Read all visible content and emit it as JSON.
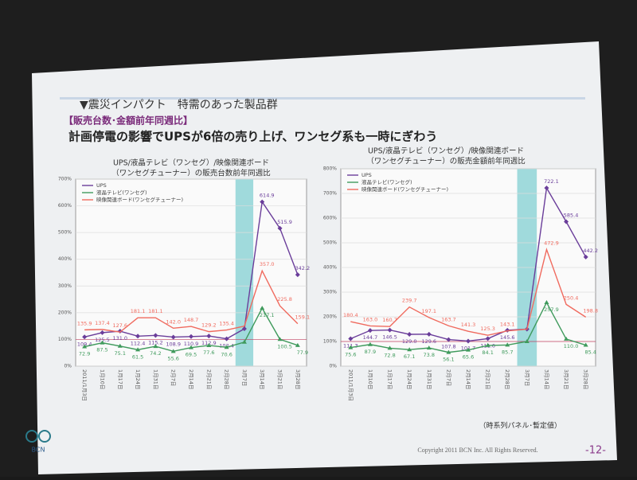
{
  "slide": {
    "title": "▼震災インパクト　特需のあった製品群",
    "subtitle": "【販売台数･金額前年同週比】",
    "headline": "計画停電の影響でUPSが6倍の売り上げ、ワンセグ系も一時にぎわう",
    "note": "（時系列パネル･暫定値）",
    "logo": "BCN",
    "copyright": "Copyright 2011  BCN Inc.  All Rights Reserved.",
    "page": "-12-"
  },
  "chart_data": [
    {
      "type": "line",
      "title": [
        "UPS/液晶テレビ（ワンセグ）/映像関連ボード",
        "（ワンセグチューナー）の販売台数前年同週比"
      ],
      "categories": [
        "2011/1月3日",
        "1月10日",
        "1月17日",
        "1月24日",
        "1月31日",
        "2月7日",
        "2月14日",
        "2月21日",
        "2月28日",
        "3月7日",
        "3月14日",
        "3月21日",
        "3月28日"
      ],
      "highlight": {
        "category": "3月7日",
        "color": "#8fd3d6"
      },
      "ylim": [
        0,
        700
      ],
      "yticks": [
        {
          "value": 0,
          "label": "0%"
        },
        {
          "value": 100,
          "label": "100%"
        },
        {
          "value": 200,
          "label": "200%"
        },
        {
          "value": 300,
          "label": "300%"
        },
        {
          "value": 400,
          "label": "400%"
        },
        {
          "value": 500,
          "label": "500%"
        },
        {
          "value": 600,
          "label": "600%"
        },
        {
          "value": 700,
          "label": "700%"
        }
      ],
      "grid": true,
      "legend": "upper-left",
      "series": [
        {
          "name": "UPS",
          "color": "#6a3d9a",
          "marker": "diamond",
          "values": [
            109.4,
            125.5,
            131.0,
            112.4,
            115.2,
            108.9,
            110.9,
            112.9,
            102.4,
            140,
            614.9,
            515.9,
            342.2
          ],
          "value_labels": [
            "109.4",
            "125.5",
            "131.0",
            "112.4",
            "115.2",
            "108.9",
            "110.9",
            "112.9",
            "102.4",
            null,
            "614.9",
            "515.9",
            "342.2"
          ]
        },
        {
          "name": "液晶テレビ(ワンセグ)",
          "color": "#3f9a5c",
          "marker": "triangle",
          "values": [
            72.9,
            87.5,
            75.1,
            61.5,
            74.2,
            55.6,
            69.5,
            77.6,
            70.6,
            90,
            217.1,
            100.5,
            77.9
          ],
          "value_labels": [
            "72.9",
            "87.5",
            "75.1",
            "61.5",
            "74.2",
            "55.6",
            "69.5",
            "77.6",
            "70.6",
            null,
            "217.1",
            "100.5",
            "77.9"
          ]
        },
        {
          "name": "映像関連ボード(ワンセグチューナー)",
          "color": "#f06a5e",
          "marker": "none",
          "values": [
            135.9,
            137.4,
            127.6,
            181.1,
            181.1,
            142.0,
            148.7,
            129.2,
            135.4,
            150,
            357.0,
            225.8,
            159.1
          ],
          "value_labels": [
            "135.9",
            "137.4",
            "127.6",
            "181.1",
            "181.1",
            "142.0",
            "148.7",
            "129.2",
            "135.4",
            null,
            "357.0",
            "225.8",
            "159.1"
          ]
        }
      ]
    },
    {
      "type": "line",
      "title": [
        "UPS/液晶テレビ（ワンセグ）/映像関連ボード",
        "（ワンセグチューナー）の販売金額前年同週比"
      ],
      "categories": [
        "2011/1月3日",
        "1月10日",
        "1月17日",
        "1月24日",
        "1月31日",
        "2月7日",
        "2月14日",
        "2月21日",
        "2月28日",
        "3月7日",
        "3月14日",
        "3月21日",
        "3月28日"
      ],
      "highlight": {
        "category": "3月7日",
        "color": "#8fd3d6"
      },
      "ylim": [
        0,
        800
      ],
      "yticks": [
        {
          "value": 0,
          "label": "0%"
        },
        {
          "value": 100,
          "label": "100%"
        },
        {
          "value": 200,
          "label": "200%"
        },
        {
          "value": 300,
          "label": "300%"
        },
        {
          "value": 400,
          "label": "400%"
        },
        {
          "value": 500,
          "label": "500%"
        },
        {
          "value": 600,
          "label": "600%"
        },
        {
          "value": 700,
          "label": "700%"
        },
        {
          "value": 800,
          "label": "800%"
        }
      ],
      "grid": true,
      "legend": "upper-left",
      "series": [
        {
          "name": "UPS",
          "color": "#6a3d9a",
          "marker": "diamond",
          "values": [
            111.3,
            144.7,
            146.5,
            129.0,
            129.6,
            107.8,
            101.7,
            111.6,
            145.6,
            150,
            722.1,
            585.4,
            442.2
          ],
          "value_labels": [
            "111.3",
            "144.7",
            "146.5",
            "129.0",
            "129.6",
            "107.8",
            "101.7",
            "111.6",
            "145.6",
            null,
            "722.1",
            "585.4",
            "442.2"
          ]
        },
        {
          "name": "液晶テレビ(ワンセグ)",
          "color": "#3f9a5c",
          "marker": "triangle",
          "values": [
            75.6,
            87.9,
            72.8,
            67.1,
            73.8,
            56.1,
            65.6,
            84.1,
            85.7,
            100,
            257.9,
            110.0,
            85.4
          ],
          "value_labels": [
            "75.6",
            "87.9",
            "72.8",
            "67.1",
            "73.8",
            "56.1",
            "65.6",
            "84.1",
            "85.7",
            null,
            "257.9",
            "110.0",
            "85.4"
          ]
        },
        {
          "name": "映像関連ボード(ワンセグチューナー)",
          "color": "#f06a5e",
          "marker": "none",
          "values": [
            180.4,
            163.0,
            160.7,
            239.7,
            197.1,
            163.7,
            141.3,
            125.3,
            143.1,
            150,
            472.9,
            250.4,
            198.8
          ],
          "value_labels": [
            "180.4",
            "163.0",
            "160.7",
            "239.7",
            "197.1",
            "163.7",
            "141.3",
            "125.3",
            "143.1",
            null,
            "472.9",
            "250.4",
            "198.8"
          ]
        }
      ]
    }
  ]
}
